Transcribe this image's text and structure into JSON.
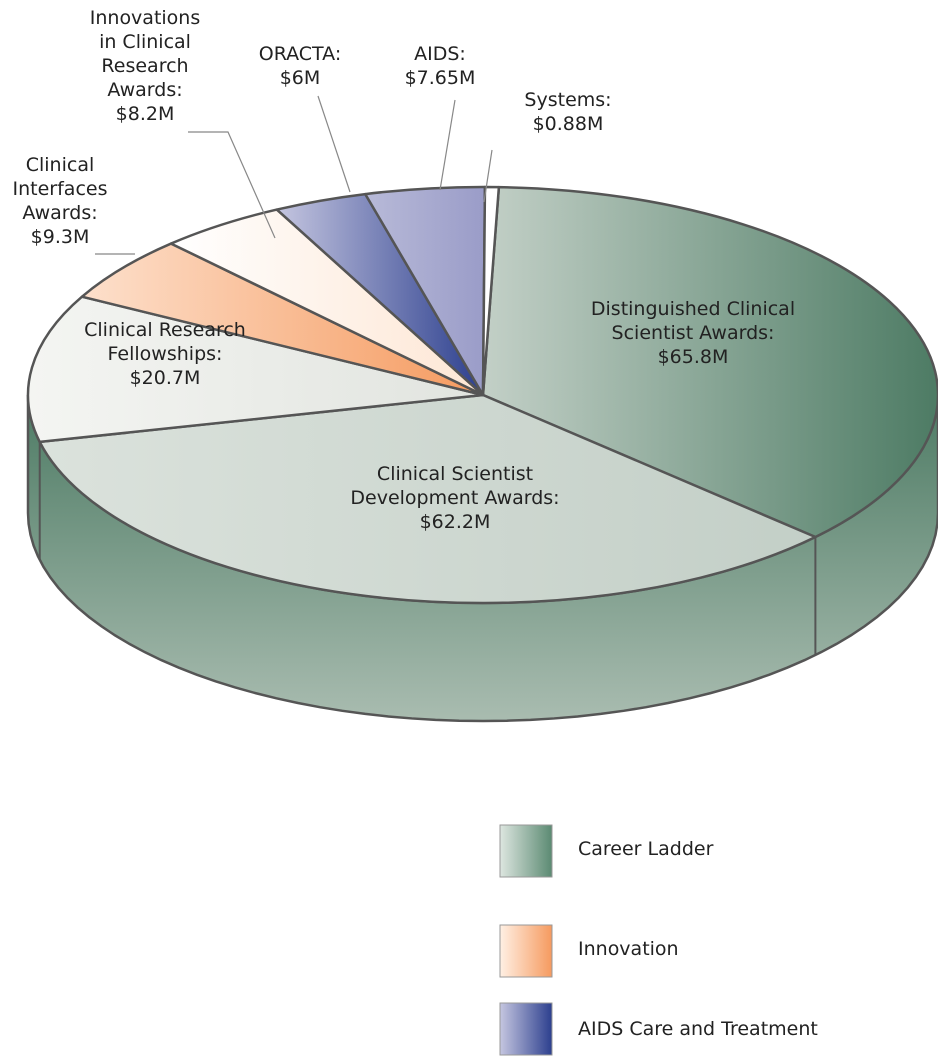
{
  "chart_data": {
    "type": "pie3d",
    "categories": [
      "Distinguished Clinical Scientist Awards:",
      "Clinical Scientist Development Awards:",
      "Clinical Research Fellowships:",
      "Clinical Interfaces Awards:",
      "Innovations in Clinical Research Awards:",
      "ORACTA:",
      "AIDS:",
      "Systems:"
    ],
    "values": [
      65.8,
      62.2,
      20.7,
      9.3,
      8.2,
      6,
      7.65,
      0.88
    ],
    "value_labels": [
      "$65.8M",
      "$62.2M",
      "$20.7M",
      "$9.3M",
      "$8.2M",
      "$6M",
      "$7.65M",
      "$0.88M"
    ],
    "colors": [
      [
        "#c3d0c7",
        "#4d7b64"
      ],
      [
        "#dbe2dc",
        "#c3cfc7"
      ],
      [
        "#f4f5f2",
        "#e1e4df"
      ],
      [
        "#fde0cc",
        "#f59a5f"
      ],
      [
        "#ffffff",
        "#fde6d4"
      ],
      [
        "#c5c6e0",
        "#2c3f8e"
      ],
      [
        "#b8bad8",
        "#9a9cc8"
      ],
      [
        "#ffffff",
        "#ffffff"
      ]
    ],
    "side_colors": [
      "#4d7b64",
      "#a9bcb0"
    ],
    "legend": [
      {
        "name": "Career Ladder",
        "colors": [
          "#dde6e0",
          "#5b8a72"
        ]
      },
      {
        "name": "Innovation",
        "colors": [
          "#fff0e4",
          "#f59a5f"
        ]
      },
      {
        "name": "AIDS Care and Treatment",
        "colors": [
          "#c5c6e0",
          "#2c3f8e"
        ]
      }
    ]
  }
}
